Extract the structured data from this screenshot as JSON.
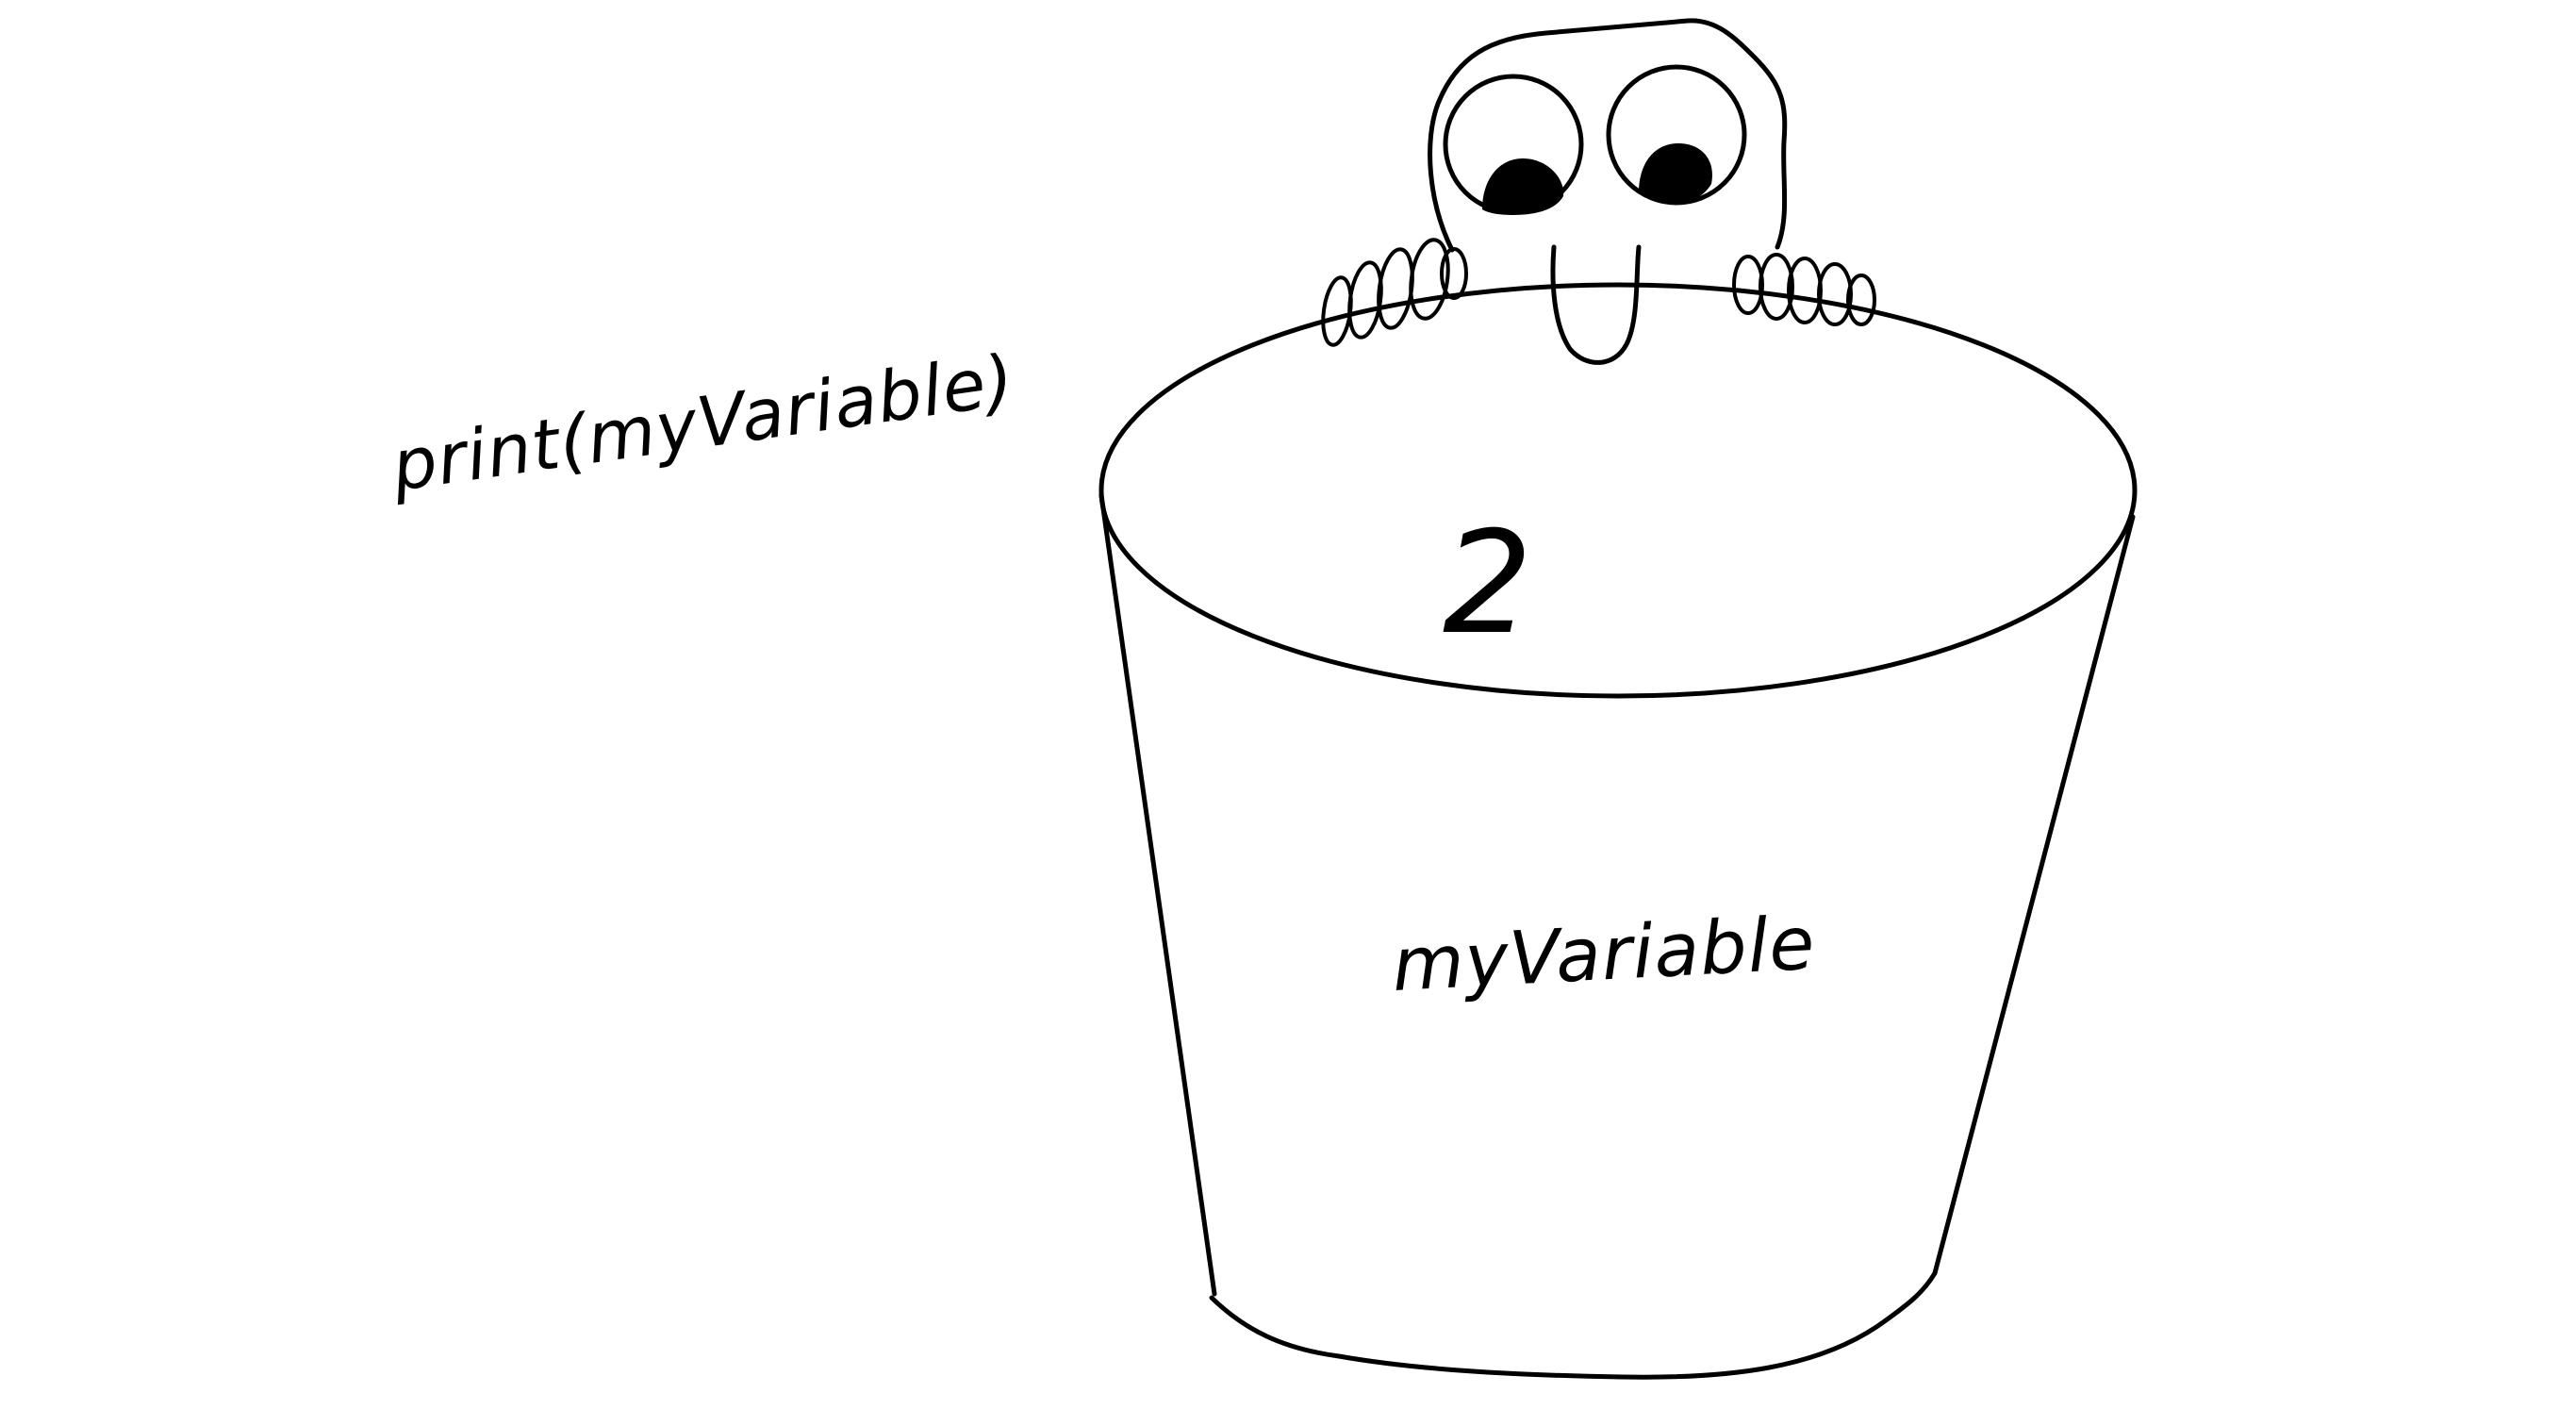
{
  "code_statement": "print(myVariable)",
  "bucket_label": "myVariable",
  "bucket_value": "2",
  "ink_color": "#000000",
  "background_color": "#ffffff"
}
